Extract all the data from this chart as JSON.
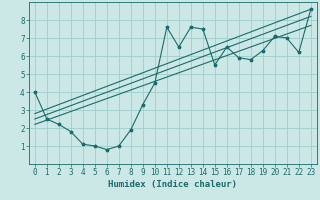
{
  "xlabel": "Humidex (Indice chaleur)",
  "ylabel": "",
  "background_color": "#cce8e6",
  "grid_color": "#9ecece",
  "line_color": "#1a6b6b",
  "xlim": [
    -0.5,
    23.5
  ],
  "ylim": [
    0,
    9
  ],
  "xticks": [
    0,
    1,
    2,
    3,
    4,
    5,
    6,
    7,
    8,
    9,
    10,
    11,
    12,
    13,
    14,
    15,
    16,
    17,
    18,
    19,
    20,
    21,
    22,
    23
  ],
  "yticks": [
    1,
    2,
    3,
    4,
    5,
    6,
    7,
    8
  ],
  "scatter_x": [
    0,
    1,
    2,
    3,
    4,
    5,
    6,
    7,
    8,
    9,
    10,
    11,
    12,
    13,
    14,
    15,
    16,
    17,
    18,
    19,
    20,
    21,
    22,
    23
  ],
  "scatter_y": [
    4.0,
    2.5,
    2.2,
    1.8,
    1.1,
    1.0,
    0.8,
    1.0,
    1.9,
    3.3,
    4.5,
    7.6,
    6.5,
    7.6,
    7.5,
    5.5,
    6.5,
    5.9,
    5.8,
    6.3,
    7.1,
    7.0,
    6.2,
    8.6
  ],
  "reg_lines": [
    {
      "x0": 0,
      "y0": 2.5,
      "x1": 23,
      "y1": 8.2
    },
    {
      "x0": 0,
      "y0": 2.2,
      "x1": 23,
      "y1": 7.7
    },
    {
      "x0": 0,
      "y0": 2.8,
      "x1": 23,
      "y1": 8.6
    }
  ],
  "tick_fontsize": 5.5,
  "xlabel_fontsize": 6.5
}
